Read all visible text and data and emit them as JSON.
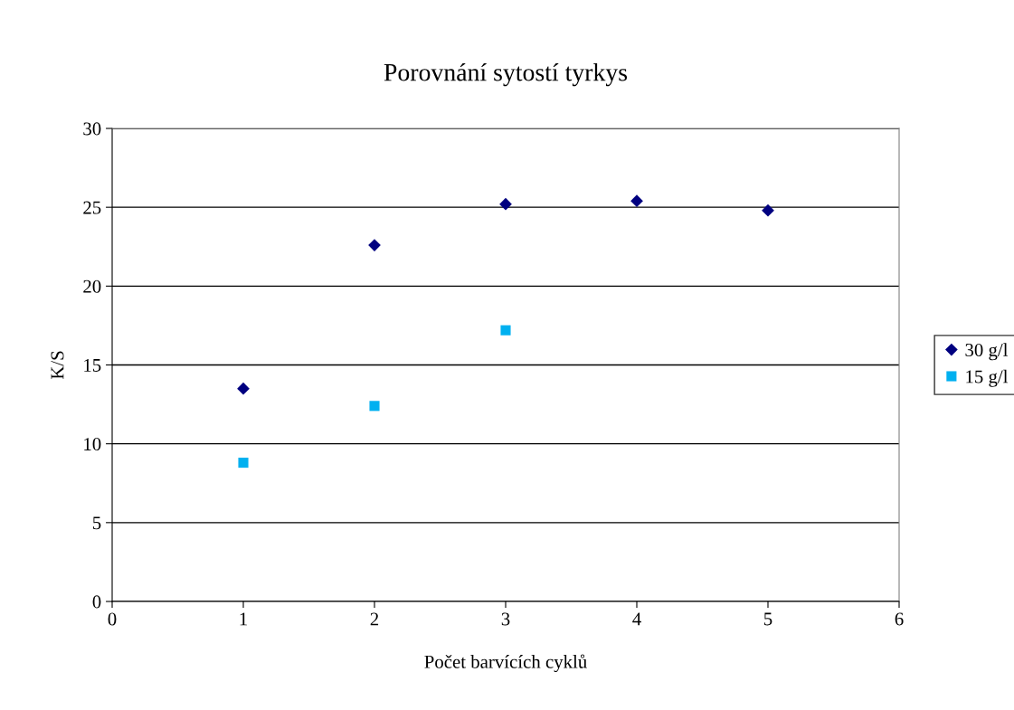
{
  "chart_data": {
    "type": "scatter",
    "title": "Porovnání sytostí tyrkys",
    "xlabel": "Počet barvících cyklů",
    "ylabel": "K/S",
    "xlim": [
      0,
      6
    ],
    "xticks": [
      0,
      1,
      2,
      3,
      4,
      5,
      6
    ],
    "ylim": [
      0,
      30
    ],
    "yticks": [
      0,
      5,
      10,
      15,
      20,
      25,
      30
    ],
    "grid": "y",
    "legend": "right",
    "series": [
      {
        "name": "30 g/l",
        "color": "#000080",
        "marker": "diamond",
        "x": [
          1,
          2,
          3,
          4,
          5
        ],
        "values": [
          13.5,
          22.6,
          25.2,
          25.4,
          24.8
        ]
      },
      {
        "name": "15 g/l",
        "color": "#00b0f0",
        "marker": "square",
        "x": [
          1,
          2,
          3
        ],
        "values": [
          8.8,
          12.4,
          17.2
        ]
      }
    ]
  }
}
